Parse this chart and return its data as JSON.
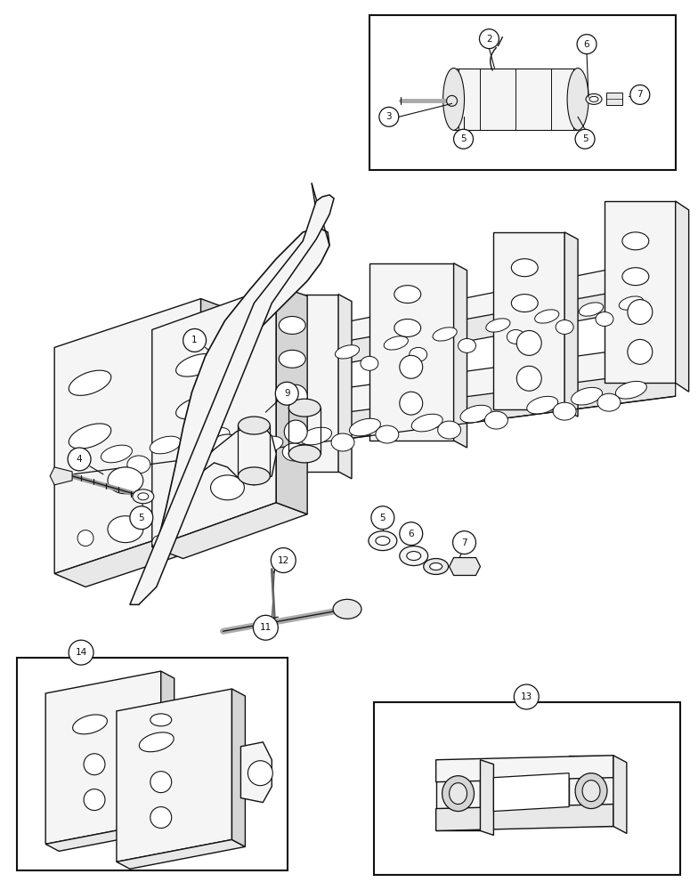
{
  "bg_color": "#ffffff",
  "lc": "#111111",
  "fc_light": "#f5f5f5",
  "fc_mid": "#e8e8e8",
  "fc_dark": "#d5d5d5",
  "figure_size": [
    7.84,
    10.0
  ],
  "dpi": 100
}
